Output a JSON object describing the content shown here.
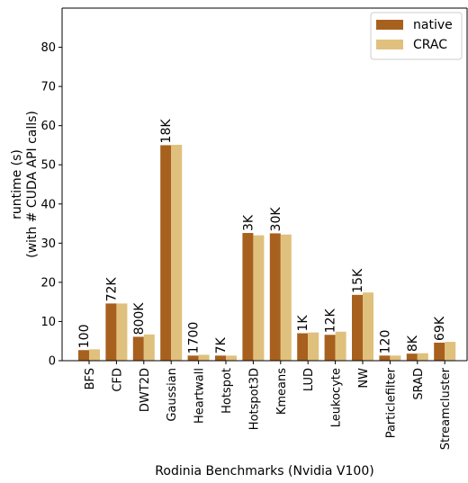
{
  "chart_data": {
    "type": "bar",
    "xlabel": "Rodinia Benchmarks (Nvidia V100)",
    "ylabel_line1": "runtime (s)",
    "ylabel_line2": "(with # CUDA API calls)",
    "ylim": [
      0,
      90
    ],
    "yticks": [
      0,
      10,
      20,
      30,
      40,
      50,
      60,
      70,
      80
    ],
    "grid": false,
    "legend_position": "top-right",
    "categories": [
      "BFS",
      "CFD",
      "DWT2D",
      "Gaussian",
      "Heartwall",
      "Hotspot",
      "Hotspot3D",
      "Kmeans",
      "LUD",
      "Leukocyte",
      "NW",
      "Particlefilter",
      "SRAD",
      "Streamcluster"
    ],
    "api_call_labels": [
      "100",
      "72K",
      "800K",
      "18K",
      "1700",
      "7K",
      "3K",
      "30K",
      "1K",
      "12K",
      "15K",
      "120",
      "8K",
      "69K"
    ],
    "series": [
      {
        "name": "native",
        "color": "#a8601e",
        "values": [
          2.7,
          14.6,
          6.1,
          55.0,
          1.3,
          1.3,
          32.6,
          32.5,
          7.0,
          6.6,
          16.8,
          1.3,
          1.8,
          4.6
        ]
      },
      {
        "name": "CRAC",
        "color": "#e0c07d",
        "values": [
          2.9,
          14.6,
          6.7,
          55.1,
          1.5,
          1.3,
          32.0,
          32.2,
          7.2,
          7.4,
          17.4,
          1.3,
          1.9,
          4.8
        ]
      }
    ]
  }
}
